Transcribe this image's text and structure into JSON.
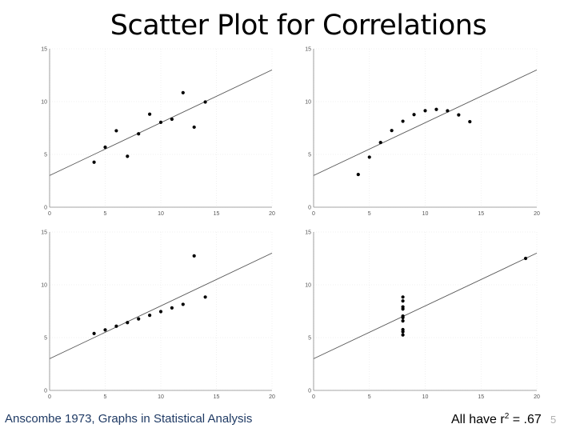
{
  "slide": {
    "title": "Scatter Plot for Correlations",
    "footer_left": "Anscombe 1973, Graphs in Statistical Analysis",
    "footer_right_prefix": "All have r",
    "footer_right_exponent": "2",
    "footer_right_suffix": " = .67",
    "slide_number": "5"
  },
  "colors": {
    "point": "#000000",
    "fit_line": "#555555",
    "axis": "#888888",
    "grid": "#e6e6e6",
    "tick_label": "#555555"
  },
  "chart_data": [
    {
      "type": "scatter",
      "title": "",
      "xlabel": "",
      "ylabel": "",
      "xlim": [
        0,
        20
      ],
      "ylim": [
        0,
        15
      ],
      "xticks": [
        0,
        5,
        10,
        15,
        20
      ],
      "yticks": [
        0,
        5,
        10,
        15
      ],
      "grid": true,
      "fit_line": {
        "intercept": 3.0,
        "slope": 0.5
      },
      "points": [
        [
          4,
          4.26
        ],
        [
          5,
          5.68
        ],
        [
          6,
          7.24
        ],
        [
          7,
          4.82
        ],
        [
          8,
          6.95
        ],
        [
          9,
          8.81
        ],
        [
          10,
          8.04
        ],
        [
          11,
          8.33
        ],
        [
          12,
          10.84
        ],
        [
          13,
          7.58
        ],
        [
          14,
          9.96
        ]
      ]
    },
    {
      "type": "scatter",
      "title": "",
      "xlabel": "",
      "ylabel": "",
      "xlim": [
        0,
        20
      ],
      "ylim": [
        0,
        15
      ],
      "xticks": [
        0,
        5,
        10,
        15,
        20
      ],
      "yticks": [
        0,
        5,
        10,
        15
      ],
      "grid": true,
      "fit_line": {
        "intercept": 3.0,
        "slope": 0.5
      },
      "points": [
        [
          4,
          3.1
        ],
        [
          5,
          4.74
        ],
        [
          6,
          6.13
        ],
        [
          7,
          7.26
        ],
        [
          8,
          8.14
        ],
        [
          9,
          8.77
        ],
        [
          10,
          9.14
        ],
        [
          11,
          9.26
        ],
        [
          12,
          9.13
        ],
        [
          13,
          8.74
        ],
        [
          14,
          8.1
        ]
      ]
    },
    {
      "type": "scatter",
      "title": "",
      "xlabel": "",
      "ylabel": "",
      "xlim": [
        0,
        20
      ],
      "ylim": [
        0,
        15
      ],
      "xticks": [
        0,
        5,
        10,
        15,
        20
      ],
      "yticks": [
        0,
        5,
        10,
        15
      ],
      "grid": true,
      "fit_line": {
        "intercept": 3.0,
        "slope": 0.5
      },
      "points": [
        [
          4,
          5.39
        ],
        [
          5,
          5.73
        ],
        [
          6,
          6.08
        ],
        [
          7,
          6.42
        ],
        [
          8,
          6.77
        ],
        [
          9,
          7.11
        ],
        [
          10,
          7.46
        ],
        [
          11,
          7.81
        ],
        [
          12,
          8.15
        ],
        [
          13,
          12.74
        ],
        [
          14,
          8.84
        ]
      ]
    },
    {
      "type": "scatter",
      "title": "",
      "xlabel": "",
      "ylabel": "",
      "xlim": [
        0,
        20
      ],
      "ylim": [
        0,
        15
      ],
      "xticks": [
        0,
        5,
        10,
        15,
        20
      ],
      "yticks": [
        0,
        5,
        10,
        15
      ],
      "grid": true,
      "fit_line": {
        "intercept": 3.0,
        "slope": 0.5
      },
      "points": [
        [
          8,
          6.58
        ],
        [
          8,
          5.76
        ],
        [
          8,
          7.71
        ],
        [
          8,
          8.84
        ],
        [
          8,
          8.47
        ],
        [
          8,
          7.04
        ],
        [
          8,
          5.25
        ],
        [
          19,
          12.5
        ],
        [
          8,
          5.56
        ],
        [
          8,
          7.91
        ],
        [
          8,
          6.89
        ]
      ]
    }
  ]
}
